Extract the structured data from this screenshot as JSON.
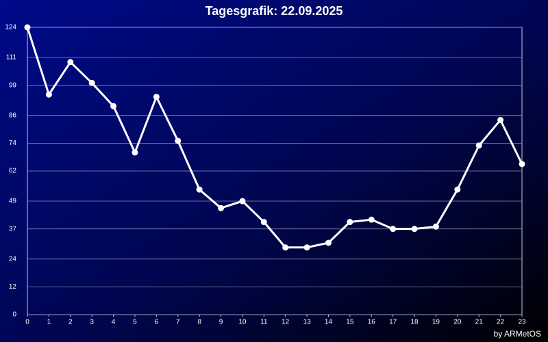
{
  "chart_data": {
    "type": "line",
    "title": "Tagesgrafik: 22.09.2025",
    "footer": "by ARMetOS",
    "x": [
      0,
      1,
      2,
      3,
      4,
      5,
      6,
      7,
      8,
      9,
      10,
      11,
      12,
      13,
      14,
      15,
      16,
      17,
      18,
      19,
      20,
      21,
      22,
      23
    ],
    "values": [
      124,
      95,
      109,
      100,
      90,
      70,
      94,
      75,
      54,
      46,
      49,
      40,
      29,
      29,
      31,
      40,
      41,
      37,
      37,
      38,
      54,
      73,
      84,
      65
    ],
    "color": "#ffffff",
    "xlim": [
      0,
      23
    ],
    "xticks": [
      0,
      1,
      2,
      3,
      4,
      5,
      6,
      7,
      8,
      9,
      10,
      11,
      12,
      13,
      14,
      15,
      16,
      17,
      18,
      19,
      20,
      21,
      22,
      23
    ],
    "ylim": [
      0,
      124
    ],
    "yticks": [
      0,
      12,
      24,
      37,
      49,
      62,
      74,
      86,
      99,
      111,
      124
    ],
    "grid": true
  }
}
